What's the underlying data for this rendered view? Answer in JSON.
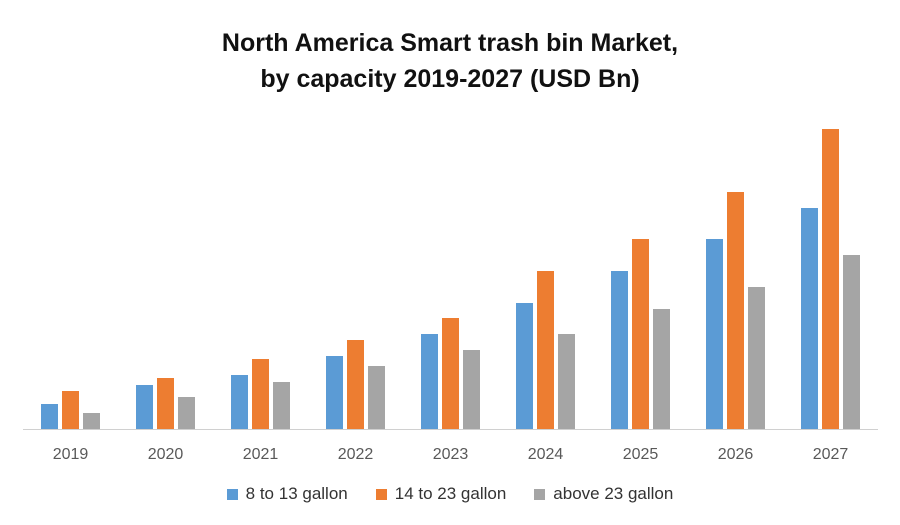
{
  "chart_data": {
    "type": "bar",
    "title": "North America Smart trash bin Market, by capacity 2019-2027 (USD Bn)",
    "title_lines": [
      "North America Smart trash bin Market,",
      "by capacity 2019-2027 (USD Bn)"
    ],
    "xlabel": "",
    "ylabel": "",
    "ylim": [
      0,
      3.2
    ],
    "grid": false,
    "legend_position": "bottom",
    "categories": [
      "2019",
      "2020",
      "2021",
      "2022",
      "2023",
      "2024",
      "2025",
      "2026",
      "2027"
    ],
    "series": [
      {
        "name": "8 to 13 gallon",
        "color": "#5B9BD5",
        "values": [
          0.25,
          0.44,
          0.54,
          0.73,
          0.95,
          1.26,
          1.58,
          1.9,
          2.21
        ]
      },
      {
        "name": "14 to 23 gallon",
        "color": "#ED7D31",
        "values": [
          0.38,
          0.51,
          0.7,
          0.89,
          1.11,
          1.58,
          1.9,
          2.37,
          3.0
        ]
      },
      {
        "name": "above 23 gallon",
        "color": "#A5A5A5",
        "values": [
          0.16,
          0.32,
          0.47,
          0.63,
          0.79,
          0.95,
          1.2,
          1.42,
          1.74
        ]
      }
    ]
  }
}
